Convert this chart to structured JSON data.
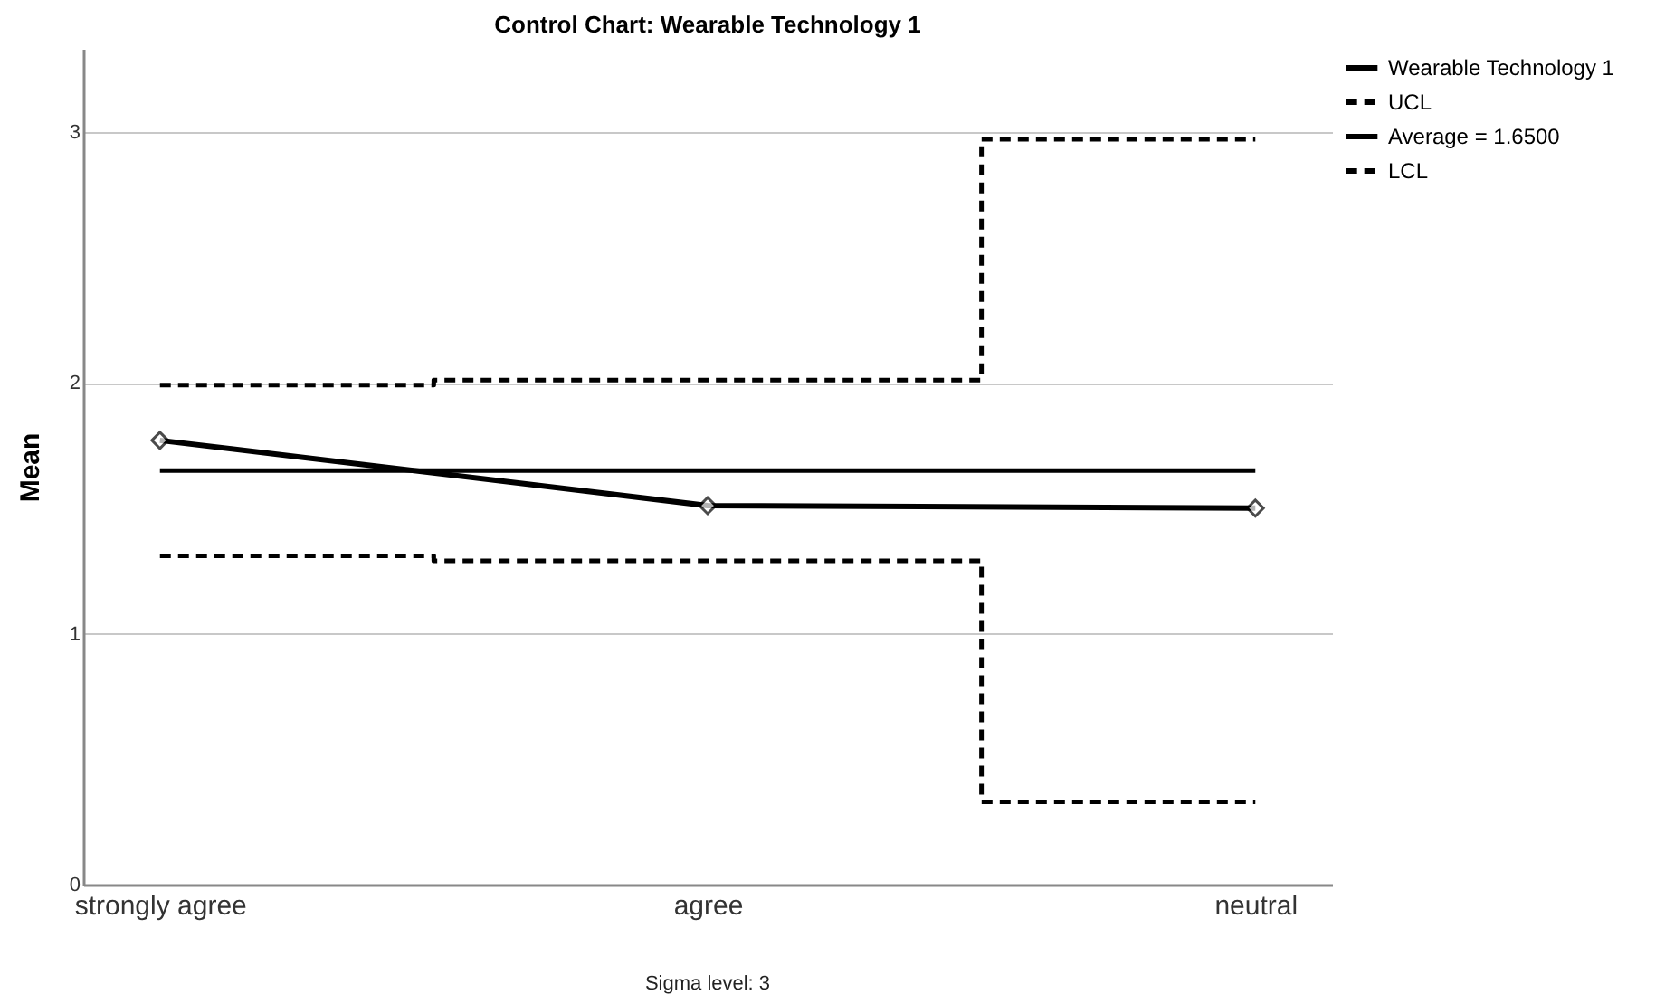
{
  "chart_data": {
    "type": "line",
    "title": "Control Chart: Wearable Technology 1",
    "ylabel": "Mean",
    "categories": [
      "strongly agree",
      "agree",
      "neutral"
    ],
    "series": [
      {
        "name": "Wearable Technology 1",
        "color": "#000000",
        "values": [
          1.77,
          1.51,
          1.5
        ],
        "marker": "diamond",
        "line_style": "solid"
      },
      {
        "name": "UCL",
        "type": "step",
        "color": "#000000",
        "values": [
          1.99,
          2.01,
          2.97
        ],
        "line_style": "dashed"
      },
      {
        "name": "Average = 1.6500",
        "color": "#000000",
        "values": [
          1.65,
          1.65,
          1.65
        ],
        "line_style": "solid"
      },
      {
        "name": "LCL",
        "type": "step",
        "color": "#000000",
        "values": [
          1.31,
          1.29,
          0.33
        ],
        "line_style": "dashed"
      }
    ],
    "ylim": [
      0,
      3.33
    ],
    "yticks": [
      0,
      1,
      2,
      3
    ],
    "grid": "y",
    "legend": "top right",
    "annotations": [
      "Sigma level:     3"
    ]
  }
}
